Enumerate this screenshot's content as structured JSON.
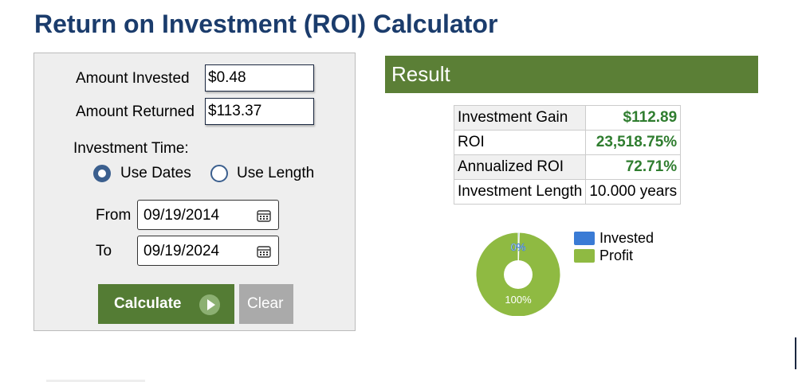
{
  "page": {
    "title": "Return on Investment (ROI) Calculator"
  },
  "form": {
    "amount_invested_label": "Amount Invested",
    "amount_invested_value": "$0.48",
    "amount_returned_label": "Amount Returned",
    "amount_returned_value": "$113.37",
    "investment_time_label": "Investment Time:",
    "use_dates_label": "Use Dates",
    "use_length_label": "Use Length",
    "selected_mode": "Use Dates",
    "from_label": "From",
    "from_value": "09/19/2014",
    "to_label": "To",
    "to_value": "09/19/2024",
    "calculate_label": "Calculate",
    "clear_label": "Clear"
  },
  "result": {
    "heading": "Result",
    "rows": [
      {
        "label": "Investment Gain",
        "value": "$112.89"
      },
      {
        "label": "ROI",
        "value": "23,518.75%"
      },
      {
        "label": "Annualized ROI",
        "value": "72.71%"
      },
      {
        "label": "Investment Length",
        "value": "10.000 years"
      }
    ]
  },
  "chart_data": {
    "type": "pie",
    "categories": [
      "Invested",
      "Profit"
    ],
    "values": [
      0.42,
      99.58
    ],
    "labels": [
      "0%",
      "100%"
    ],
    "colors": [
      "#3a7bd5",
      "#8fba42"
    ],
    "legend_placement": "right"
  },
  "icons": {
    "calendar": "calendar-icon",
    "play": "play-icon"
  },
  "colors": {
    "title": "#1b3c6c",
    "accent_green": "#547c34",
    "result_bar": "#5b7f36",
    "value_green": "#2f7d2f",
    "radio": "#3b5f8e"
  }
}
